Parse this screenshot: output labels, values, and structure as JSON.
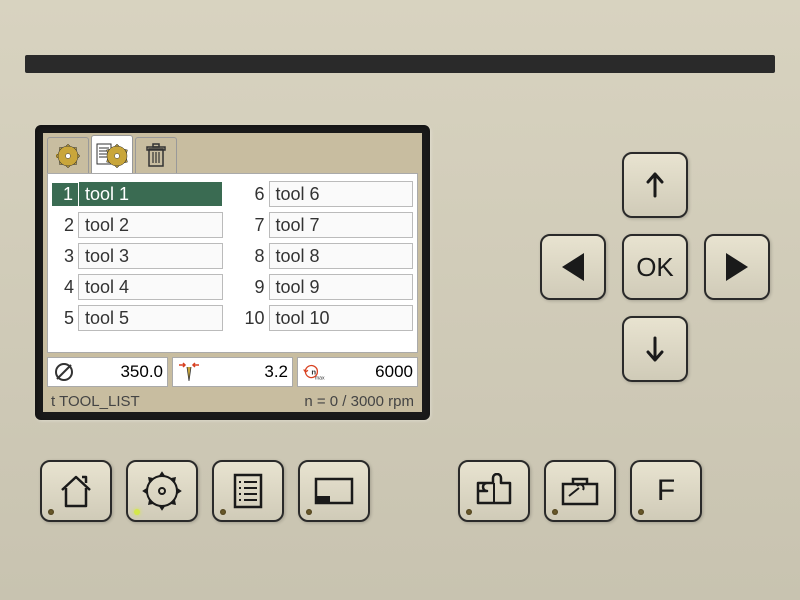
{
  "colors": {
    "panel_bg": "#d8d3c0",
    "screen_bezel": "#1a1a1a",
    "screen_bg": "#c8bda0",
    "content_bg": "#ffffff",
    "selected_bg": "#3a6b52",
    "selected_fg": "#ffffff",
    "border": "#aaaaaa",
    "text": "#333333",
    "btn_border": "#2a2a2a",
    "led_off": "#6b5a2a",
    "led_on": "#d4e84a",
    "accent_red": "#d84020",
    "accent_gold": "#c9a63a"
  },
  "tabs": [
    {
      "icon": "gear-blade",
      "active": false
    },
    {
      "icon": "list-blade",
      "active": true
    },
    {
      "icon": "trash",
      "active": false
    }
  ],
  "tools": {
    "left": [
      {
        "num": "1",
        "name": "tool 1",
        "selected": true
      },
      {
        "num": "2",
        "name": "tool 2",
        "selected": false
      },
      {
        "num": "3",
        "name": "tool 3",
        "selected": false
      },
      {
        "num": "4",
        "name": "tool 4",
        "selected": false
      },
      {
        "num": "5",
        "name": "tool 5",
        "selected": false
      }
    ],
    "right": [
      {
        "num": "6",
        "name": "tool 6",
        "selected": false
      },
      {
        "num": "7",
        "name": "tool 7",
        "selected": false
      },
      {
        "num": "8",
        "name": "tool 8",
        "selected": false
      },
      {
        "num": "9",
        "name": "tool 9",
        "selected": false
      },
      {
        "num": "10",
        "name": "tool 10",
        "selected": false
      }
    ]
  },
  "params": {
    "diameter": {
      "value": "350.0"
    },
    "kerf": {
      "value": "3.2"
    },
    "rpm_max": {
      "value": "6000"
    }
  },
  "status": {
    "left": "t  TOOL_LIST",
    "right": "n = 0 /  3000  rpm"
  },
  "dpad": {
    "ok_label": "OK"
  },
  "bottom_buttons": [
    {
      "name": "home",
      "led": false
    },
    {
      "name": "blade",
      "led": true
    },
    {
      "name": "list",
      "led": false
    },
    {
      "name": "rect",
      "led": false
    },
    {
      "name": "puzzle",
      "led": false
    },
    {
      "name": "toolbox",
      "led": false
    },
    {
      "name": "function",
      "label": "F",
      "led": false
    }
  ]
}
